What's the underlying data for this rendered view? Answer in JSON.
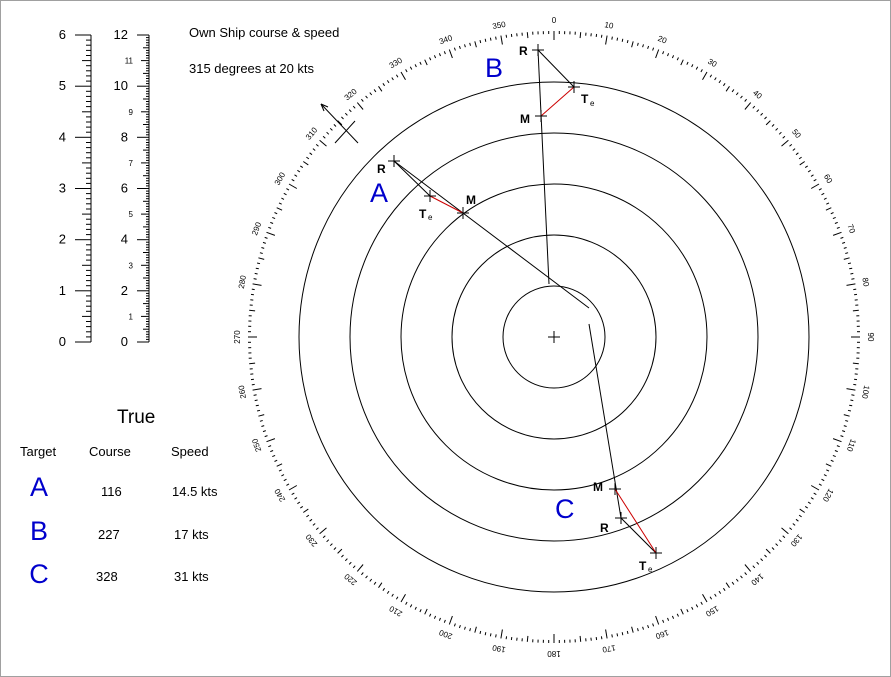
{
  "own_ship": {
    "title": "Own Ship course & speed",
    "value": "315 degrees at 20 kts"
  },
  "scales": {
    "left_ticks": [
      "0",
      "1",
      "2",
      "3",
      "4",
      "5",
      "6"
    ],
    "right_major": [
      "0",
      "2",
      "4",
      "6",
      "8",
      "10",
      "12"
    ],
    "right_minor": [
      "1",
      "3",
      "5",
      "7",
      "9",
      "11"
    ]
  },
  "true_table": {
    "heading": "True",
    "columns": [
      "Target",
      "Course",
      "Speed"
    ],
    "rows": [
      {
        "target": "A",
        "course": "116",
        "speed": "14.5 kts"
      },
      {
        "target": "B",
        "course": "227",
        "speed": "17 kts"
      },
      {
        "target": "C",
        "course": "328",
        "speed": "31 kts"
      }
    ]
  },
  "bearing_labels": [
    "0",
    "10",
    "20",
    "30",
    "40",
    "50",
    "60",
    "70",
    "80",
    "90",
    "100",
    "110",
    "120",
    "130",
    "140",
    "150",
    "160",
    "170",
    "180",
    "190",
    "200",
    "210",
    "220",
    "230",
    "240",
    "250",
    "260",
    "270",
    "280",
    "290",
    "300",
    "310",
    "320",
    "330",
    "340",
    "350"
  ],
  "plot": {
    "range_rings_count": 5,
    "targets": [
      {
        "name": "A",
        "point_labels": {
          "R": "R",
          "M": "M",
          "T": "T",
          "sub": "e"
        }
      },
      {
        "name": "B",
        "point_labels": {
          "R": "R",
          "M": "M",
          "T": "T",
          "sub": "e"
        }
      },
      {
        "name": "C",
        "point_labels": {
          "R": "R",
          "M": "M",
          "T": "T",
          "sub": "e"
        }
      }
    ]
  },
  "colors": {
    "target_letter": "#0000cc",
    "relative_line": "#000000",
    "true_vector": "#cc0000",
    "rings": "#000000"
  }
}
